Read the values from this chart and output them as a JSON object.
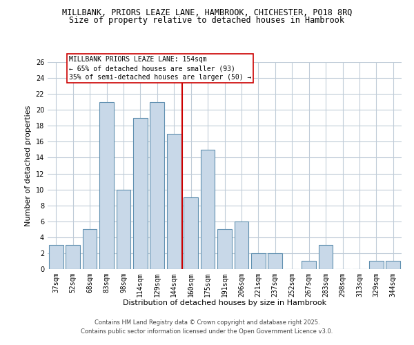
{
  "title1": "MILLBANK, PRIORS LEAZE LANE, HAMBROOK, CHICHESTER, PO18 8RQ",
  "title2": "Size of property relative to detached houses in Hambrook",
  "xlabel": "Distribution of detached houses by size in Hambrook",
  "ylabel": "Number of detached properties",
  "categories": [
    "37sqm",
    "52sqm",
    "68sqm",
    "83sqm",
    "98sqm",
    "114sqm",
    "129sqm",
    "144sqm",
    "160sqm",
    "175sqm",
    "191sqm",
    "206sqm",
    "221sqm",
    "237sqm",
    "252sqm",
    "267sqm",
    "283sqm",
    "298sqm",
    "313sqm",
    "329sqm",
    "344sqm"
  ],
  "values": [
    3,
    3,
    5,
    21,
    10,
    19,
    21,
    17,
    9,
    15,
    5,
    6,
    2,
    2,
    0,
    1,
    3,
    0,
    0,
    1,
    1
  ],
  "bar_color": "#c8d8e8",
  "bar_edgecolor": "#6090b0",
  "bar_linewidth": 0.8,
  "vline_color": "#cc0000",
  "annotation_text": "MILLBANK PRIORS LEAZE LANE: 154sqm\n← 65% of detached houses are smaller (93)\n35% of semi-detached houses are larger (50) →",
  "annotation_box_edgecolor": "#cc0000",
  "annotation_box_facecolor": "#ffffff",
  "ylim": [
    0,
    26
  ],
  "yticks": [
    0,
    2,
    4,
    6,
    8,
    10,
    12,
    14,
    16,
    18,
    20,
    22,
    24,
    26
  ],
  "footer1": "Contains HM Land Registry data © Crown copyright and database right 2025.",
  "footer2": "Contains public sector information licensed under the Open Government Licence v3.0.",
  "background_color": "#ffffff",
  "grid_color": "#c0ccd8",
  "title1_fontsize": 8.5,
  "title2_fontsize": 8.5,
  "xlabel_fontsize": 8,
  "ylabel_fontsize": 8,
  "tick_fontsize": 7,
  "annotation_fontsize": 7,
  "footer_fontsize": 6
}
